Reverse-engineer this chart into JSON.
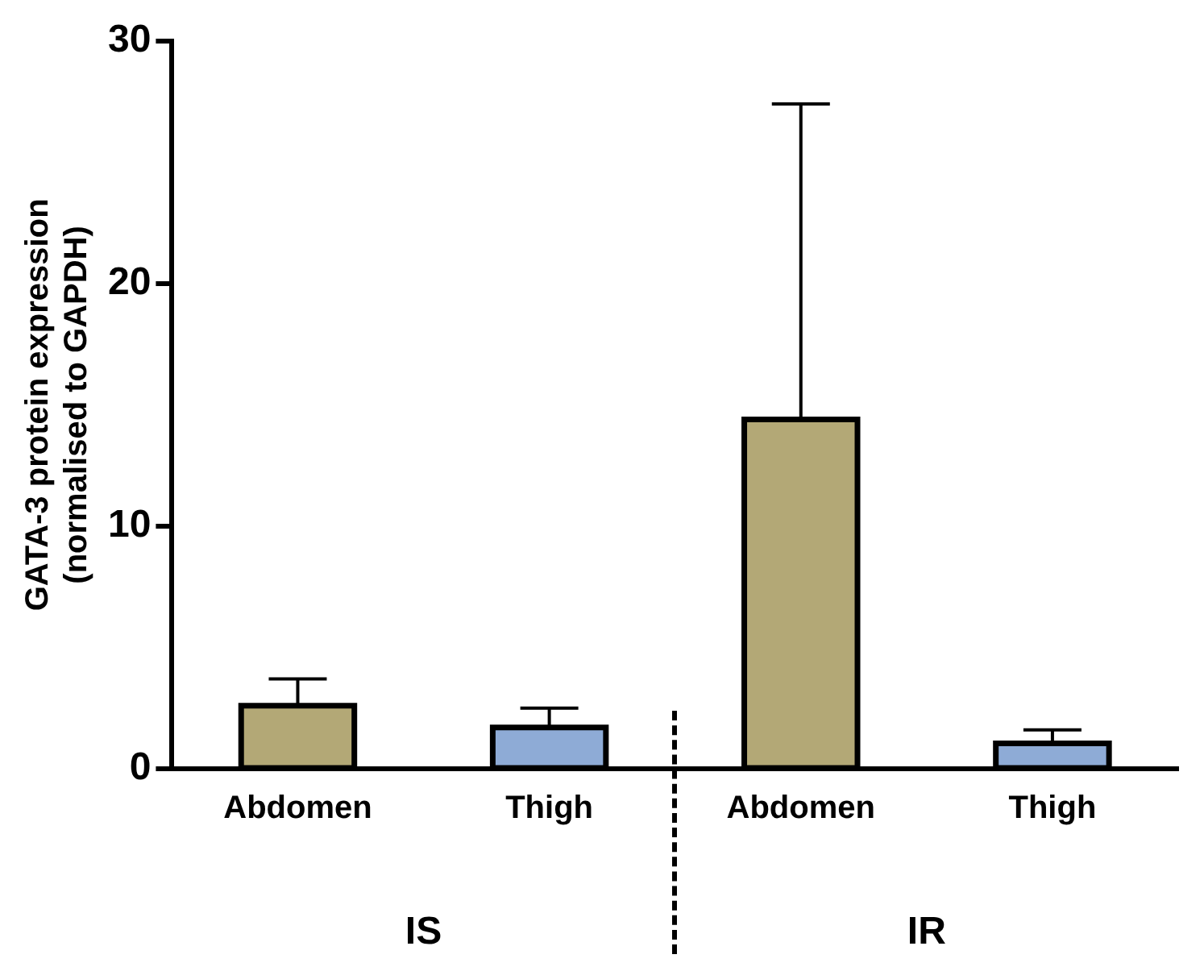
{
  "chart_data": {
    "type": "bar",
    "categories": [
      "Abdomen",
      "Thigh",
      "Abdomen",
      "Thigh"
    ],
    "values": [
      2.6,
      1.7,
      14.4,
      1.05
    ],
    "colors": [
      "#b3a876",
      "#8eabd6",
      "#b3a876",
      "#8eabd6"
    ],
    "errors": [
      [
        2.6,
        3.7
      ],
      [
        1.7,
        2.5
      ],
      [
        14.4,
        27.4
      ],
      [
        1.05,
        1.6
      ]
    ],
    "ylabel": "GATA-3 protein expression\n(normalised to GAPDH)",
    "ylim": [
      0,
      30
    ],
    "yticks": [
      0,
      10,
      20,
      30
    ],
    "annotations": [
      "IS",
      "IR"
    ],
    "grid": false,
    "legend": false
  }
}
